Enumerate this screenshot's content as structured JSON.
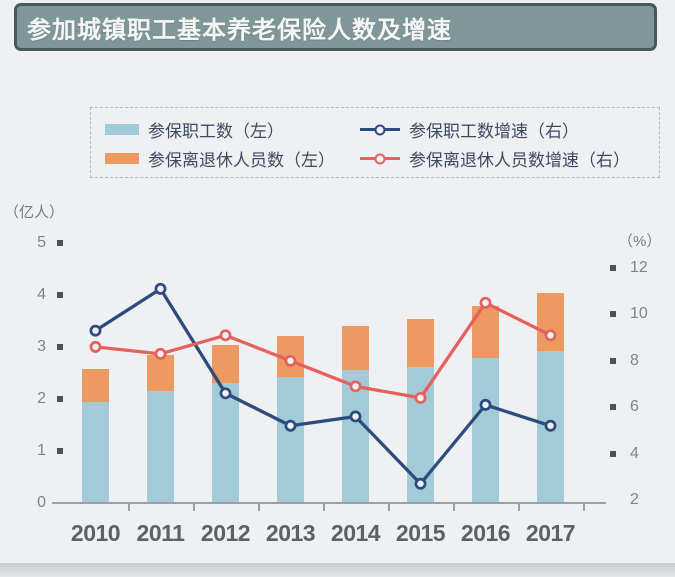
{
  "title": "参加城镇职工基本养老保险人数及增速",
  "legend": {
    "items": [
      {
        "label": "参保职工数（左）",
        "swatch": "bar",
        "color": "#a3cad8"
      },
      {
        "label": "参保离退休人员数（左）",
        "swatch": "bar",
        "color": "#ec9a61"
      },
      {
        "label": "参保职工数增速（右）",
        "swatch": "line",
        "color": "#2e4b7d"
      },
      {
        "label": "参保离退休人员数增速（右）",
        "swatch": "line",
        "color": "#e3625e"
      }
    ]
  },
  "chart_data": {
    "type": "combo: stacked bar (left axis) + line (right axis)",
    "title": "参加城镇职工基本养老保险人数及增速",
    "categories": [
      "2010",
      "2011",
      "2012",
      "2013",
      "2014",
      "2015",
      "2016",
      "2017"
    ],
    "series": [
      {
        "name": "参保职工数（左）",
        "type": "bar",
        "stack": "total",
        "axis": "left",
        "unit": "亿人",
        "color": "#a3cad8",
        "values": [
          1.94,
          2.16,
          2.3,
          2.42,
          2.55,
          2.62,
          2.78,
          2.93
        ]
      },
      {
        "name": "参保离退休人员数（左）",
        "type": "bar",
        "stack": "total",
        "axis": "left",
        "unit": "亿人",
        "color": "#ec9a61",
        "values": [
          0.63,
          0.68,
          0.74,
          0.8,
          0.86,
          0.91,
          1.01,
          1.1
        ]
      },
      {
        "name": "参保职工数增速（右）",
        "type": "line",
        "axis": "right",
        "unit": "%",
        "color": "#2e4b7d",
        "values": [
          9.3,
          11.1,
          6.6,
          5.2,
          5.6,
          2.7,
          6.1,
          5.2
        ]
      },
      {
        "name": "参保离退休人员数增速（右）",
        "type": "line",
        "axis": "right",
        "unit": "%",
        "color": "#e3625e",
        "values": [
          8.6,
          8.3,
          9.1,
          8.0,
          6.9,
          6.4,
          10.5,
          9.1
        ]
      }
    ],
    "left_axis": {
      "label": "（亿人）",
      "ticks": [
        5,
        4,
        3,
        2,
        1,
        0
      ],
      "range": [
        0,
        5
      ]
    },
    "right_axis": {
      "label": "（%）",
      "ticks": [
        12,
        10,
        8,
        6,
        4,
        2
      ],
      "range": [
        2,
        12
      ]
    },
    "grid": false,
    "legend_position": "top"
  },
  "colors": {
    "page_bg": "#eef0f1",
    "title_fill": "#80979a",
    "title_border": "#47595c",
    "title_text": "#f4f6f6",
    "bar_workers": "#a3cad8",
    "bar_retirees": "#ec9a61",
    "line_workers_growth": "#2e4b7d",
    "line_retirees_growth": "#e3625e",
    "axis_text": "#7d848d",
    "year_text": "#5b6169",
    "legend_text": "#3e4a64"
  }
}
